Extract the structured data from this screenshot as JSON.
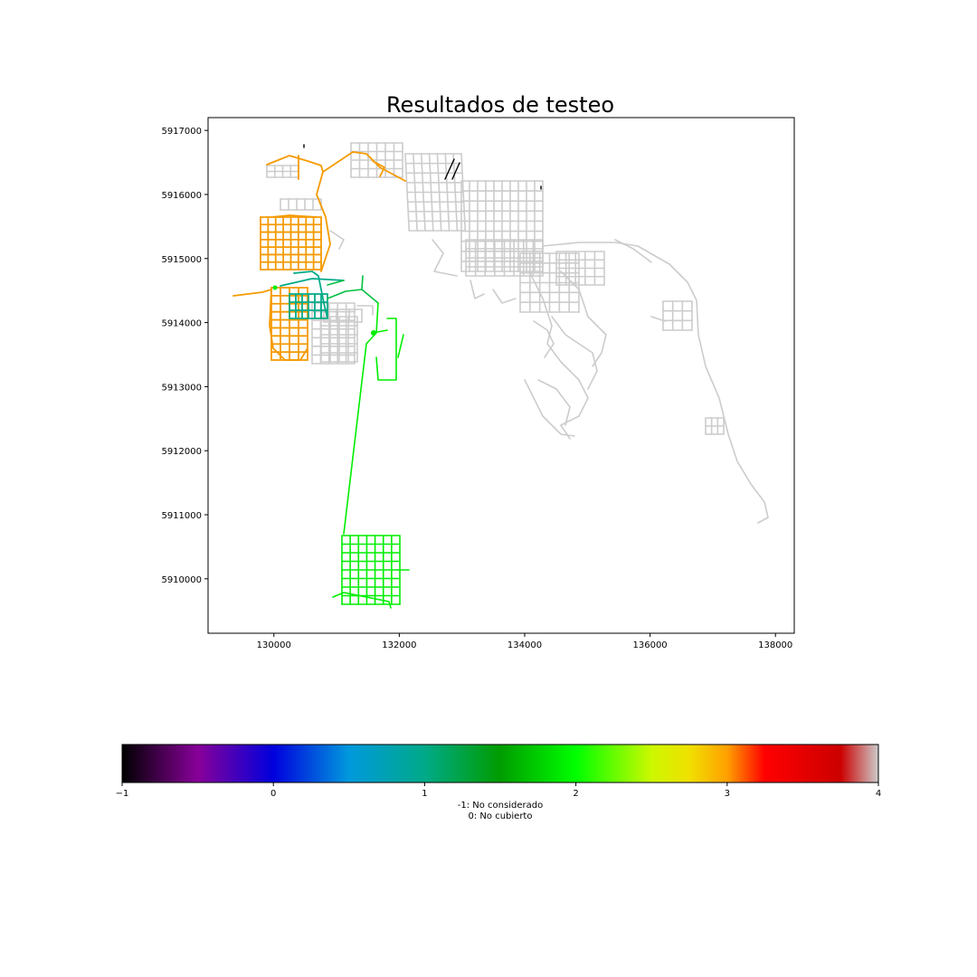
{
  "chart_data": {
    "type": "map",
    "title": "Resultados de testeo",
    "xlim": [
      128950,
      138300
    ],
    "ylim": [
      5909150,
      5917200
    ],
    "x_ticks": [
      130000,
      132000,
      134000,
      136000,
      138000
    ],
    "x_tick_labels": [
      "130000",
      "132000",
      "134000",
      "136000",
      "138000"
    ],
    "y_ticks": [
      5910000,
      5911000,
      5912000,
      5913000,
      5914000,
      5915000,
      5916000,
      5917000
    ],
    "y_tick_labels": [
      "5910000",
      "5911000",
      "5912000",
      "5913000",
      "5914000",
      "5915000",
      "5916000",
      "5917000"
    ],
    "colorbar": {
      "range": [
        -1,
        4
      ],
      "ticks": [
        -1,
        0,
        1,
        2,
        3,
        4
      ],
      "tick_labels": [
        "−1",
        "0",
        "1",
        "2",
        "3",
        "4"
      ],
      "label_lines": [
        "-1: No considerado",
        "0: No cubierto"
      ],
      "colormap": "nipy_spectral",
      "stops": [
        {
          "v": 0.0,
          "c": "#000000"
        },
        {
          "v": 0.1,
          "c": "#880099"
        },
        {
          "v": 0.2,
          "c": "#0000dd"
        },
        {
          "v": 0.3,
          "c": "#0099dd"
        },
        {
          "v": 0.4,
          "c": "#00aa88"
        },
        {
          "v": 0.5,
          "c": "#009c00"
        },
        {
          "v": 0.6,
          "c": "#00ff00"
        },
        {
          "v": 0.7,
          "c": "#ccf800"
        },
        {
          "v": 0.75,
          "c": "#f0e000"
        },
        {
          "v": 0.8,
          "c": "#ffa000"
        },
        {
          "v": 0.85,
          "c": "#ff0000"
        },
        {
          "v": 0.95,
          "c": "#cc0000"
        },
        {
          "v": 1.0,
          "c": "#cccccc"
        }
      ]
    },
    "layers": [
      {
        "value": 3.0,
        "color": "#f59a00"
      },
      {
        "value": 1.0,
        "color": "#00aa88"
      },
      {
        "value": 1.3,
        "color": "#00c040"
      },
      {
        "value": 2.0,
        "color": "#00ee00"
      },
      {
        "value": 4.0,
        "color": "#cccccc"
      },
      {
        "value": -1.0,
        "color": "#000000"
      }
    ]
  }
}
